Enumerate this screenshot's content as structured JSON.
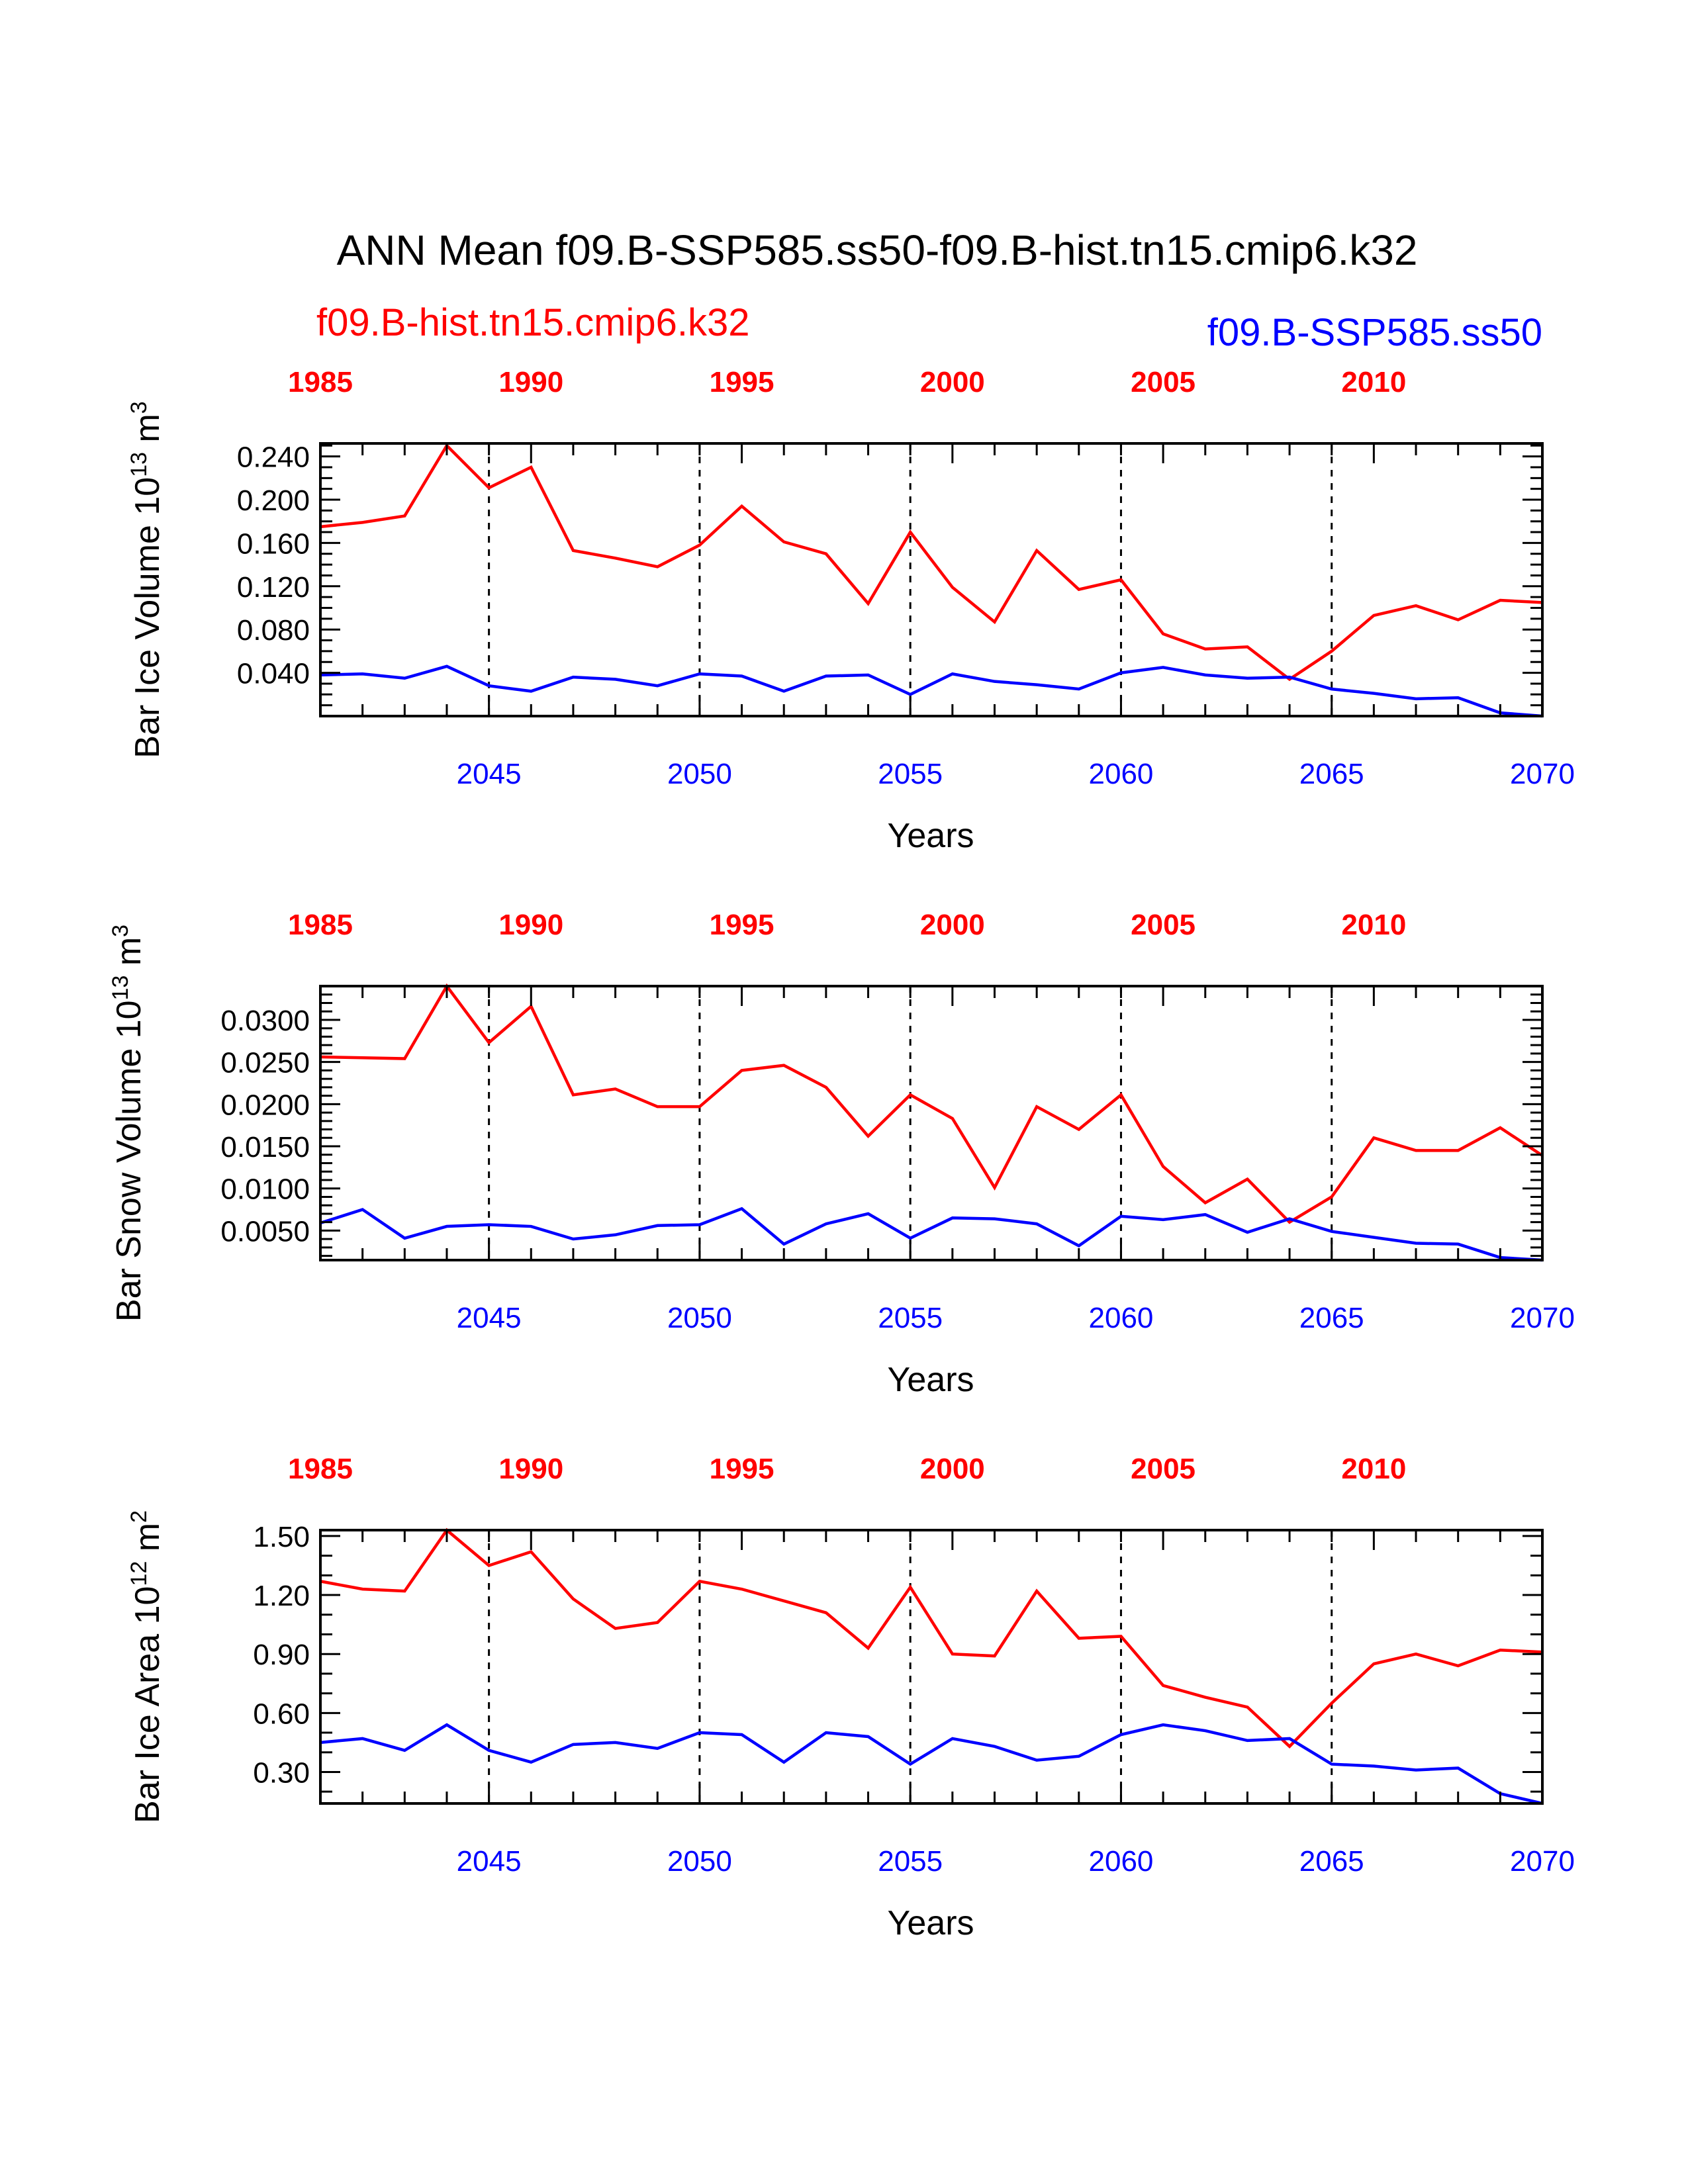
{
  "figure": {
    "title": "ANN Mean f09.B-SSP585.ss50-f09.B-hist.tn15.cmip6.k32",
    "left_case": "f09.B-hist.tn15.cmip6.k32",
    "right_case": "f09.B-SSP585.ss50",
    "colors": {
      "hist": "#ff0000",
      "ssp": "#0000ff",
      "axis": "#000000"
    }
  },
  "chart_data": [
    {
      "type": "line",
      "ylabel_main": "Bar Ice Volume 10",
      "ylabel_sup": "13",
      "ylabel_unit": " m",
      "ylabel_unit_sup": "3",
      "xlabel": "Years",
      "xlim": [
        2041,
        2070
      ],
      "ylim": [
        0.0,
        0.252
      ],
      "yticks": [
        0.04,
        0.08,
        0.12,
        0.16,
        0.2,
        0.24
      ],
      "ytick_labels": [
        "0.040",
        "0.080",
        "0.120",
        "0.160",
        "0.200",
        "0.240"
      ],
      "yminor_step": 0.01,
      "bottom_ticks": [
        2045,
        2050,
        2055,
        2060,
        2065,
        2070
      ],
      "bottom_tick_labels": [
        "2045",
        "2050",
        "2055",
        "2060",
        "2065",
        "2070"
      ],
      "top_ticks": [
        1985,
        1990,
        1995,
        2000,
        2005,
        2010
      ],
      "top_tick_labels": [
        "1985",
        "1990",
        "1995",
        "2000",
        "2005",
        "2010"
      ],
      "top_offset": 56,
      "vlines": [
        2045,
        2050,
        2055,
        2060,
        2065
      ],
      "x": [
        2041,
        2042,
        2043,
        2044,
        2045,
        2046,
        2047,
        2048,
        2049,
        2050,
        2051,
        2052,
        2053,
        2054,
        2055,
        2056,
        2057,
        2058,
        2059,
        2060,
        2061,
        2062,
        2063,
        2064,
        2065,
        2066,
        2067,
        2068,
        2069,
        2070
      ],
      "series": [
        {
          "key": "hist",
          "values": [
            0.175,
            0.179,
            0.185,
            0.25,
            0.211,
            0.23,
            0.153,
            0.146,
            0.138,
            0.158,
            0.194,
            0.161,
            0.15,
            0.104,
            0.17,
            0.119,
            0.087,
            0.153,
            0.117,
            0.126,
            0.076,
            0.062,
            0.064,
            0.034,
            0.06,
            0.093,
            0.102,
            0.089,
            0.107,
            0.105
          ]
        },
        {
          "key": "ssp",
          "values": [
            0.038,
            0.039,
            0.035,
            0.046,
            0.028,
            0.023,
            0.036,
            0.034,
            0.028,
            0.039,
            0.037,
            0.023,
            0.037,
            0.038,
            0.02,
            0.039,
            0.032,
            0.029,
            0.025,
            0.04,
            0.045,
            0.038,
            0.035,
            0.036,
            0.025,
            0.021,
            0.016,
            0.017,
            0.003,
            0.0
          ]
        }
      ]
    },
    {
      "type": "line",
      "ylabel_main": "Bar Snow Volume 10",
      "ylabel_sup": "13",
      "ylabel_unit": " m",
      "ylabel_unit_sup": "3",
      "xlabel": "Years",
      "xlim": [
        2041,
        2070
      ],
      "ylim": [
        0.0015,
        0.034
      ],
      "yticks": [
        0.005,
        0.01,
        0.015,
        0.02,
        0.025,
        0.03
      ],
      "ytick_labels": [
        "0.0050",
        "0.0100",
        "0.0150",
        "0.0200",
        "0.0250",
        "0.0300"
      ],
      "yminor_step": 0.001,
      "bottom_ticks": [
        2045,
        2050,
        2055,
        2060,
        2065,
        2070
      ],
      "bottom_tick_labels": [
        "2045",
        "2050",
        "2055",
        "2060",
        "2065",
        "2070"
      ],
      "top_ticks": [
        1985,
        1990,
        1995,
        2000,
        2005,
        2010
      ],
      "top_tick_labels": [
        "1985",
        "1990",
        "1995",
        "2000",
        "2005",
        "2010"
      ],
      "top_offset": 56,
      "vlines": [
        2045,
        2050,
        2055,
        2060,
        2065
      ],
      "x": [
        2041,
        2042,
        2043,
        2044,
        2045,
        2046,
        2047,
        2048,
        2049,
        2050,
        2051,
        2052,
        2053,
        2054,
        2055,
        2056,
        2057,
        2058,
        2059,
        2060,
        2061,
        2062,
        2063,
        2064,
        2065,
        2066,
        2067,
        2068,
        2069,
        2070
      ],
      "series": [
        {
          "key": "hist",
          "values": [
            0.0256,
            0.0255,
            0.0254,
            0.034,
            0.0273,
            0.0316,
            0.0211,
            0.0218,
            0.0197,
            0.0197,
            0.024,
            0.0246,
            0.022,
            0.0162,
            0.0211,
            0.0183,
            0.0101,
            0.0197,
            0.017,
            0.0211,
            0.0126,
            0.0083,
            0.0111,
            0.006,
            0.009,
            0.016,
            0.0145,
            0.0145,
            0.0172,
            0.0139
          ]
        },
        {
          "key": "ssp",
          "values": [
            0.0059,
            0.0075,
            0.0041,
            0.0055,
            0.0057,
            0.0055,
            0.004,
            0.0045,
            0.0056,
            0.0057,
            0.0076,
            0.0034,
            0.0058,
            0.007,
            0.0041,
            0.0065,
            0.0064,
            0.0058,
            0.0032,
            0.0067,
            0.0063,
            0.0069,
            0.0048,
            0.0064,
            0.0049,
            0.0042,
            0.0035,
            0.0034,
            0.0018,
            0.0015
          ]
        }
      ]
    },
    {
      "type": "line",
      "ylabel_main": "Bar Ice Area 10",
      "ylabel_sup": "12",
      "ylabel_unit": " m",
      "ylabel_unit_sup": "2",
      "xlabel": "Years",
      "xlim": [
        2041,
        2070
      ],
      "ylim": [
        0.14,
        1.53
      ],
      "yticks": [
        0.3,
        0.6,
        0.9,
        1.2,
        1.5
      ],
      "ytick_labels": [
        "0.30",
        "0.60",
        "0.90",
        "1.20",
        "1.50"
      ],
      "yminor_step": 0.1,
      "bottom_ticks": [
        2045,
        2050,
        2055,
        2060,
        2065,
        2070
      ],
      "bottom_tick_labels": [
        "2045",
        "2050",
        "2055",
        "2060",
        "2065",
        "2070"
      ],
      "top_ticks": [
        1985,
        1990,
        1995,
        2000,
        2005,
        2010
      ],
      "top_tick_labels": [
        "1985",
        "1990",
        "1995",
        "2000",
        "2005",
        "2010"
      ],
      "top_offset": 56,
      "vlines": [
        2045,
        2050,
        2055,
        2060,
        2065
      ],
      "x": [
        2041,
        2042,
        2043,
        2044,
        2045,
        2046,
        2047,
        2048,
        2049,
        2050,
        2051,
        2052,
        2053,
        2054,
        2055,
        2056,
        2057,
        2058,
        2059,
        2060,
        2061,
        2062,
        2063,
        2064,
        2065,
        2066,
        2067,
        2068,
        2069,
        2070
      ],
      "series": [
        {
          "key": "hist",
          "values": [
            1.27,
            1.23,
            1.22,
            1.53,
            1.35,
            1.42,
            1.18,
            1.03,
            1.06,
            1.27,
            1.23,
            1.17,
            1.11,
            0.93,
            1.24,
            0.9,
            0.89,
            1.22,
            0.98,
            0.99,
            0.74,
            0.68,
            0.63,
            0.43,
            0.65,
            0.85,
            0.9,
            0.84,
            0.92,
            0.91
          ]
        },
        {
          "key": "ssp",
          "values": [
            0.45,
            0.47,
            0.41,
            0.54,
            0.41,
            0.35,
            0.44,
            0.45,
            0.42,
            0.5,
            0.49,
            0.35,
            0.5,
            0.48,
            0.34,
            0.47,
            0.43,
            0.36,
            0.38,
            0.49,
            0.54,
            0.51,
            0.46,
            0.47,
            0.34,
            0.33,
            0.31,
            0.32,
            0.19,
            0.14
          ]
        }
      ]
    }
  ]
}
